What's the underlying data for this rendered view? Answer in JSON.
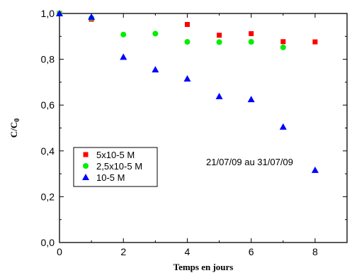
{
  "chart_data": {
    "type": "scatter",
    "xlabel": "Temps en jours",
    "ylabel_main": "C/C",
    "ylabel_sub": "0",
    "xlim": [
      0,
      9
    ],
    "ylim": [
      0,
      1.0
    ],
    "xticks": [
      0,
      2,
      4,
      6,
      8
    ],
    "xtick_labels": [
      "0",
      "2",
      "4",
      "6",
      "8"
    ],
    "yticks": [
      0,
      0.2,
      0.4,
      0.6,
      0.8,
      1.0
    ],
    "ytick_labels": [
      "0,0",
      "0,2",
      "0,4",
      "0,6",
      "0,8",
      "1,0"
    ],
    "grid": false,
    "legend_placement": "lower-left",
    "annotation": "21/07/09 au 31/07/09",
    "series": [
      {
        "name": "5x10-5 M",
        "marker": "square",
        "color": "#ff0000",
        "x": [
          0,
          1,
          4,
          5,
          6,
          7,
          8
        ],
        "y": [
          1.0,
          0.975,
          0.952,
          0.905,
          0.912,
          0.877,
          0.876
        ]
      },
      {
        "name": "2,5x10-5 M",
        "marker": "circle",
        "color": "#00ee00",
        "x": [
          0,
          1,
          2,
          3,
          4,
          5,
          6,
          7
        ],
        "y": [
          1.0,
          0.98,
          0.908,
          0.912,
          0.876,
          0.875,
          0.876,
          0.852
        ]
      },
      {
        "name": "10-5 M",
        "marker": "triangle",
        "color": "#0000ff",
        "x": [
          0,
          1,
          2,
          3,
          4,
          5,
          6,
          7,
          8
        ],
        "y": [
          1.0,
          0.985,
          0.81,
          0.755,
          0.715,
          0.638,
          0.625,
          0.505,
          0.316
        ]
      }
    ]
  }
}
